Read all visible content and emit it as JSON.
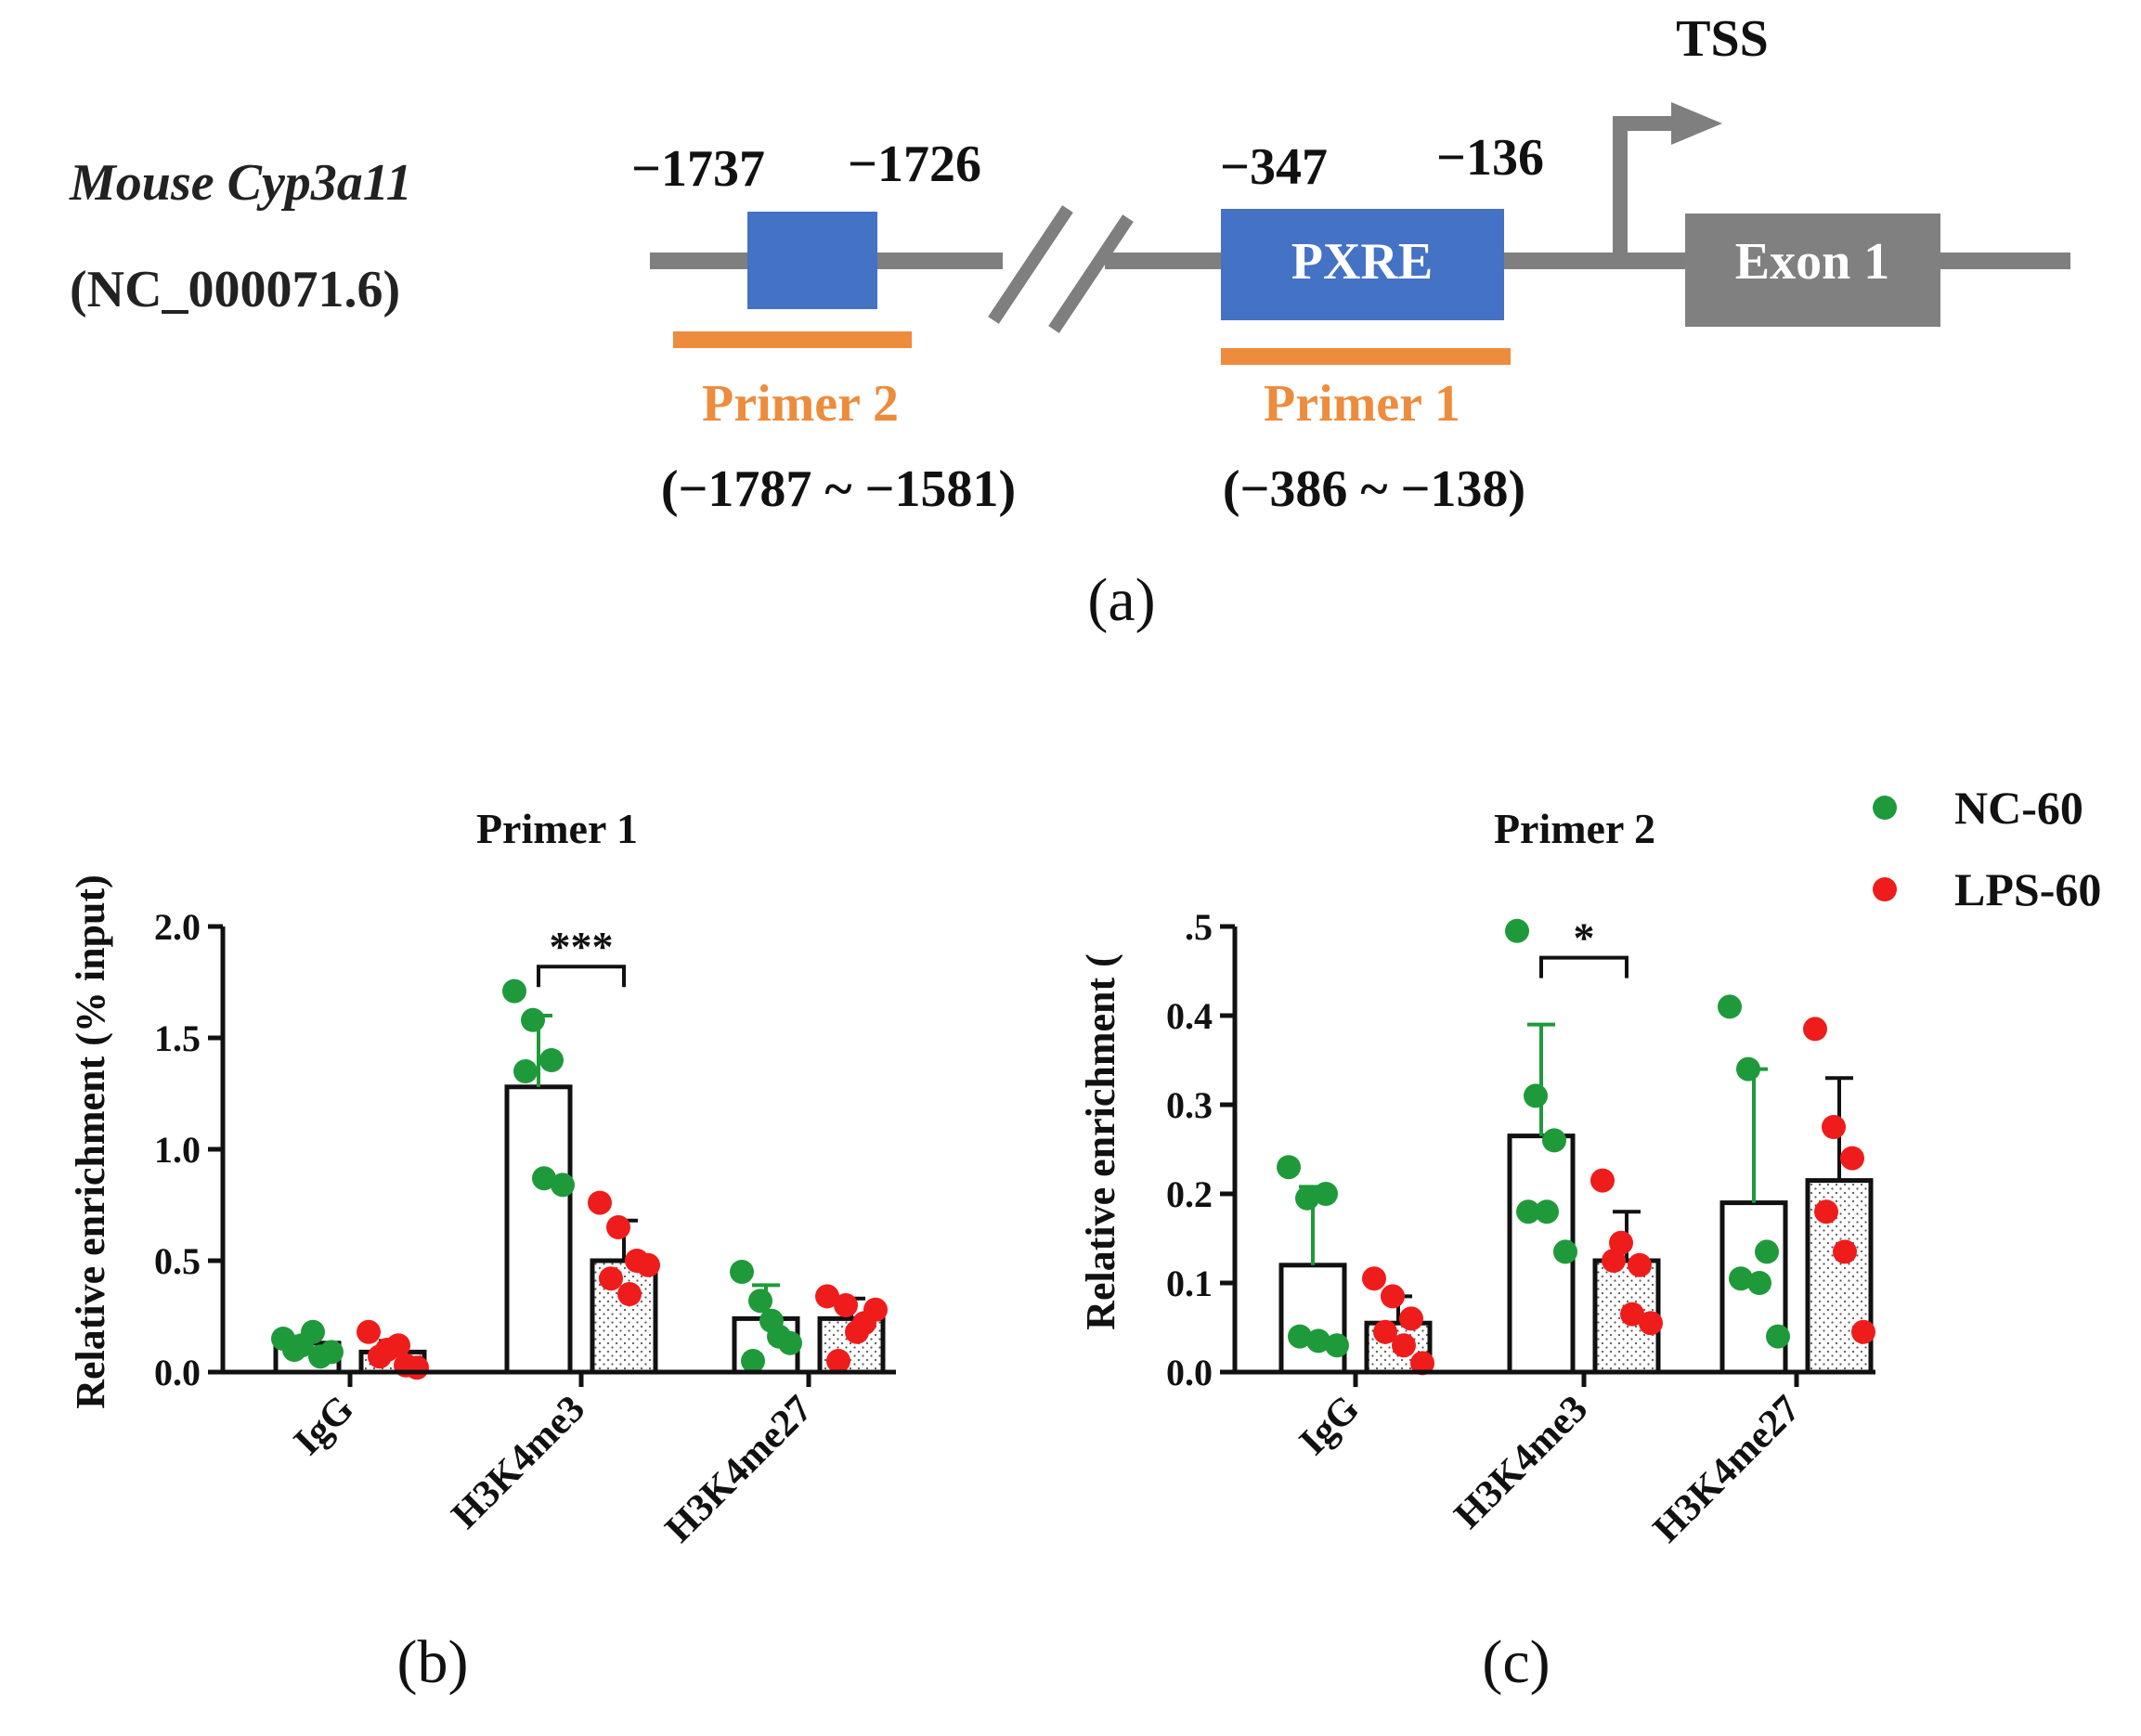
{
  "panel_a": {
    "gene_label": "Mouse Cyp3a11",
    "accession": "(NC_000071.6)",
    "pos_left_start": "−1737",
    "pos_left_end": "−1726",
    "pos_pxre_start": "−347",
    "pos_pxre_end": "−136",
    "tss_label": "TSS",
    "pxre_label": "PXRE",
    "exon_label": "Exon 1",
    "primer2_label": "Primer 2",
    "primer1_label": "Primer 1",
    "primer2_range": "(−1787 ~ −1581)",
    "primer1_range": "(−386 ~ −138)",
    "panel_label": "(a)",
    "colors": {
      "backbone": "#7f7f7f",
      "box": "#4472c4",
      "primer": "#ed8c3d",
      "exon": "#808080"
    }
  },
  "legend": {
    "items": [
      {
        "label": "NC-60",
        "color": "#1f9a3b"
      },
      {
        "label": "LPS-60",
        "color": "#ef1c1c"
      }
    ]
  },
  "chart_data": [
    {
      "type": "bar",
      "panel_label": "(b)",
      "title": "Primer 1",
      "xlabel": "",
      "ylabel": "Relative enrichment (% input)",
      "ylim": [
        0,
        2.0
      ],
      "yticks": [
        "0.0",
        "0.5",
        "1.0",
        "1.5",
        "2.0"
      ],
      "categories": [
        "IgG",
        "H3K4me3",
        "H3K4me27"
      ],
      "series": [
        {
          "name": "NC-60",
          "values": [
            0.13,
            1.28,
            0.24
          ],
          "errors": [
            0.03,
            0.32,
            0.15
          ],
          "points": [
            [
              0.15,
              0.12,
              0.07,
              0.1,
              0.18,
              0.09
            ],
            [
              1.71,
              1.58,
              1.4,
              1.35,
              0.87,
              0.84
            ],
            [
              0.45,
              0.32,
              0.16,
              0.05,
              0.23,
              0.13
            ]
          ]
        },
        {
          "name": "LPS-60",
          "values": [
            0.09,
            0.5,
            0.24
          ],
          "errors": [
            0.05,
            0.18,
            0.09
          ],
          "points": [
            [
              0.18,
              0.1,
              0.03,
              0.07,
              0.12,
              0.02
            ],
            [
              0.76,
              0.65,
              0.5,
              0.42,
              0.35,
              0.48
            ],
            [
              0.34,
              0.3,
              0.22,
              0.05,
              0.18,
              0.28
            ]
          ]
        }
      ],
      "significance": [
        {
          "category": "H3K4me3",
          "label": "***"
        }
      ]
    },
    {
      "type": "bar",
      "panel_label": "(c)",
      "title": "Primer 2",
      "xlabel": "",
      "ylabel": "Relative enrichment (",
      "ylim": [
        0,
        0.5
      ],
      "yticks": [
        "0.0",
        "0.1",
        "0.2",
        "0.3",
        "0.4",
        ".5"
      ],
      "categories": [
        "IgG",
        "H3K4me3",
        "H3K4me27"
      ],
      "series": [
        {
          "name": "NC-60",
          "values": [
            0.12,
            0.265,
            0.19
          ],
          "errors": [
            0.088,
            0.125,
            0.15
          ],
          "points": [
            [
              0.23,
              0.195,
              0.2,
              0.04,
              0.035,
              0.03
            ],
            [
              0.495,
              0.31,
              0.26,
              0.18,
              0.18,
              0.135
            ],
            [
              0.41,
              0.34,
              0.135,
              0.105,
              0.1,
              0.04
            ]
          ]
        },
        {
          "name": "LPS-60",
          "values": [
            0.055,
            0.125,
            0.215
          ],
          "errors": [
            0.03,
            0.055,
            0.115
          ],
          "points": [
            [
              0.105,
              0.085,
              0.06,
              0.045,
              0.03,
              0.01
            ],
            [
              0.215,
              0.145,
              0.12,
              0.125,
              0.065,
              0.055
            ],
            [
              0.385,
              0.275,
              0.24,
              0.18,
              0.135,
              0.045
            ]
          ]
        }
      ],
      "significance": [
        {
          "category": "H3K4me3",
          "label": "*"
        }
      ]
    }
  ]
}
